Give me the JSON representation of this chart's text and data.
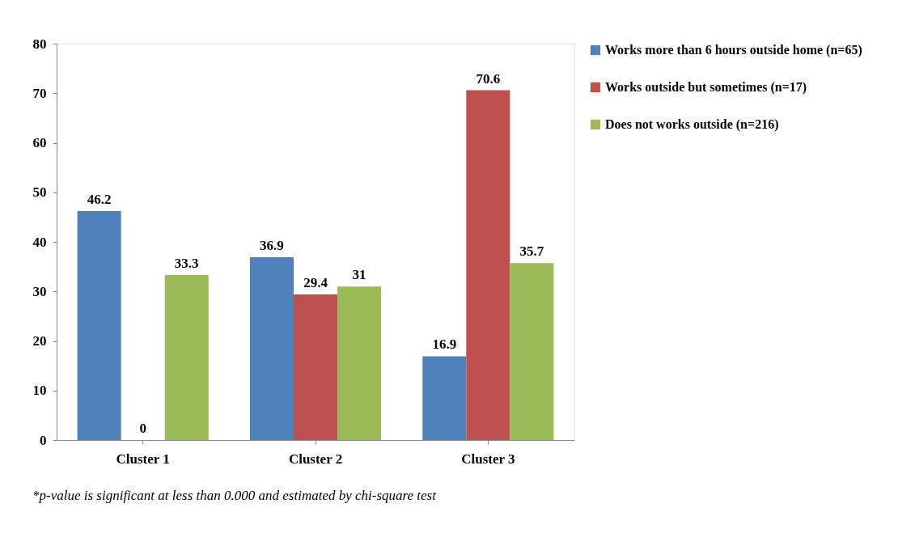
{
  "chart_data": {
    "type": "bar",
    "categories": [
      "Cluster 1",
      "Cluster 2",
      "Cluster 3"
    ],
    "series": [
      {
        "name": "Works more than 6 hours outside home (n=65)",
        "color": "#4f81bd",
        "values": [
          46.2,
          36.9,
          16.9
        ]
      },
      {
        "name": "Works outside but sometimes (n=17)",
        "color": "#c0504d",
        "values": [
          0,
          29.4,
          70.6
        ]
      },
      {
        "name": "Does not works outside (n=216)",
        "color": "#9bbb59",
        "values": [
          33.3,
          31,
          35.7
        ]
      }
    ],
    "ylim": [
      0,
      80
    ],
    "yticks": [
      0,
      10,
      20,
      30,
      40,
      50,
      60,
      70,
      80
    ],
    "grid": false,
    "legend": "right",
    "data_labels": true,
    "annotations": [
      "*p-value is significant at less than 0.000 and estimated by chi-square test"
    ]
  }
}
